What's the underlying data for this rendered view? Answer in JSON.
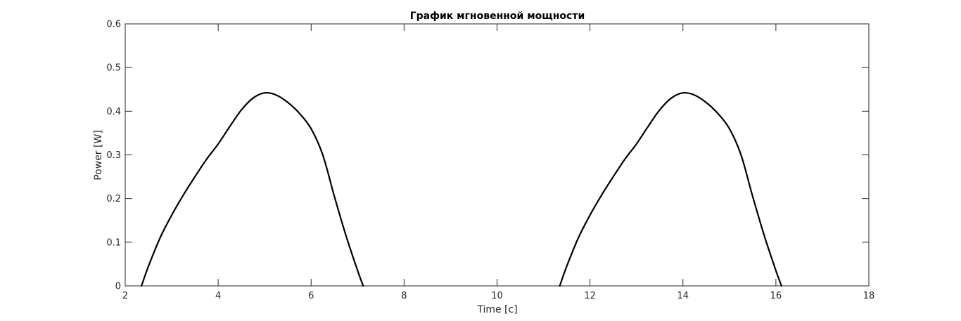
{
  "chart_data": {
    "type": "line",
    "title": "График мгновенной мощности",
    "xlabel": "Time [c]",
    "ylabel": "Power [W]",
    "xlim": [
      2,
      18
    ],
    "ylim": [
      0,
      0.6
    ],
    "xticks": [
      2,
      4,
      6,
      8,
      10,
      12,
      14,
      16,
      18
    ],
    "yticks": [
      0,
      0.1,
      0.2,
      0.3,
      0.4,
      0.5,
      0.6
    ],
    "xtick_labels": [
      "2",
      "4",
      "6",
      "8",
      "10",
      "12",
      "14",
      "16",
      "18"
    ],
    "ytick_labels": [
      "0",
      "0.1",
      "0.2",
      "0.3",
      "0.4",
      "0.5",
      "0.6"
    ],
    "grid": false,
    "box": true,
    "series": [
      {
        "color": "#000000",
        "segments": [
          [
            [
              2.35,
              0.0
            ],
            [
              2.5,
              0.045
            ],
            [
              2.75,
              0.11
            ],
            [
              3.0,
              0.162
            ],
            [
              3.25,
              0.208
            ],
            [
              3.5,
              0.25
            ],
            [
              3.75,
              0.29
            ],
            [
              4.0,
              0.325
            ],
            [
              4.25,
              0.365
            ],
            [
              4.5,
              0.403
            ],
            [
              4.75,
              0.43
            ],
            [
              5.0,
              0.442
            ],
            [
              5.25,
              0.437
            ],
            [
              5.5,
              0.42
            ],
            [
              5.75,
              0.395
            ],
            [
              6.0,
              0.36
            ],
            [
              6.25,
              0.3
            ],
            [
              6.5,
              0.205
            ],
            [
              6.75,
              0.115
            ],
            [
              7.0,
              0.035
            ],
            [
              7.12,
              0.0
            ]
          ],
          [
            [
              11.35,
              0.0
            ],
            [
              11.5,
              0.045
            ],
            [
              11.75,
              0.11
            ],
            [
              12.0,
              0.162
            ],
            [
              12.25,
              0.208
            ],
            [
              12.5,
              0.25
            ],
            [
              12.75,
              0.29
            ],
            [
              13.0,
              0.325
            ],
            [
              13.25,
              0.365
            ],
            [
              13.5,
              0.403
            ],
            [
              13.75,
              0.43
            ],
            [
              14.0,
              0.442
            ],
            [
              14.25,
              0.437
            ],
            [
              14.5,
              0.42
            ],
            [
              14.75,
              0.395
            ],
            [
              15.0,
              0.36
            ],
            [
              15.25,
              0.3
            ],
            [
              15.5,
              0.205
            ],
            [
              15.75,
              0.115
            ],
            [
              16.0,
              0.035
            ],
            [
              16.12,
              0.0
            ]
          ]
        ]
      }
    ]
  }
}
